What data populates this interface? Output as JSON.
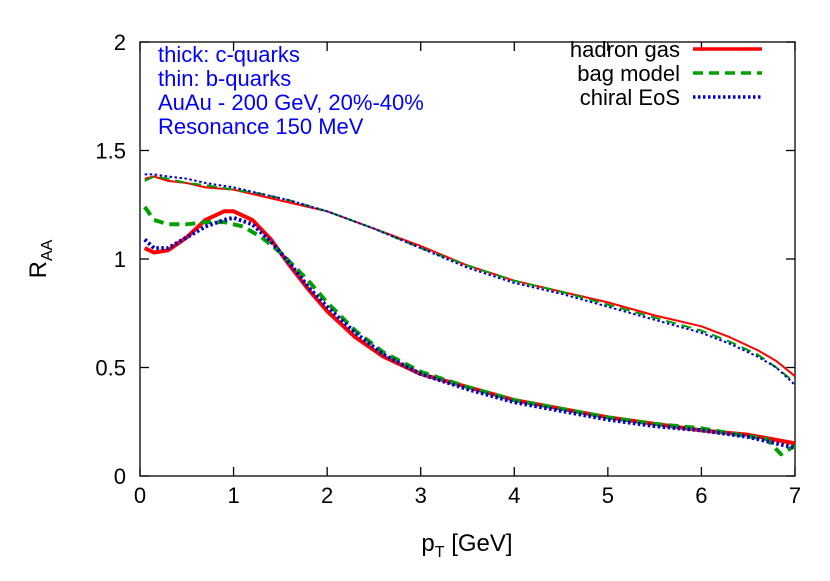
{
  "chart_data": {
    "type": "line",
    "xlabel": {
      "main": "p",
      "sub": "T",
      "rest": " [GeV]"
    },
    "ylabel": {
      "main": "R",
      "sub": "AA"
    },
    "xlim": [
      0,
      7
    ],
    "ylim": [
      0,
      2
    ],
    "xticks": [
      "0",
      "1",
      "2",
      "3",
      "4",
      "5",
      "6",
      "7"
    ],
    "yticks": [
      "0",
      "0.5",
      "1",
      "1.5",
      "2"
    ],
    "grid": false,
    "legend_position": "top-right",
    "annotations": [
      "thick: c-quarks",
      "thin: b-quarks",
      "AuAu - 200 GeV, 20%-40%",
      "Resonance 150 MeV"
    ],
    "annotation_color": "#0000ff",
    "series": [
      {
        "name": "hadron gas",
        "color": "#ff0000",
        "dash": "solid",
        "curves": [
          {
            "width": "thin",
            "x": [
              0.05,
              0.15,
              0.3,
              0.5,
              0.7,
              1.0,
              1.3,
              1.6,
              2.0,
              2.5,
              3.0,
              3.5,
              4.0,
              4.5,
              5.0,
              5.5,
              6.0,
              6.3,
              6.6,
              6.8,
              7.0
            ],
            "y": [
              1.37,
              1.38,
              1.36,
              1.35,
              1.33,
              1.32,
              1.29,
              1.26,
              1.22,
              1.14,
              1.06,
              0.97,
              0.9,
              0.85,
              0.8,
              0.74,
              0.69,
              0.64,
              0.58,
              0.53,
              0.46
            ]
          },
          {
            "width": "thick",
            "x": [
              0.05,
              0.15,
              0.3,
              0.5,
              0.7,
              0.9,
              1.0,
              1.2,
              1.4,
              1.6,
              1.8,
              2.0,
              2.3,
              2.6,
              3.0,
              3.5,
              4.0,
              4.5,
              5.0,
              5.5,
              6.0,
              6.5,
              7.0
            ],
            "y": [
              1.05,
              1.03,
              1.04,
              1.1,
              1.18,
              1.22,
              1.22,
              1.18,
              1.09,
              0.97,
              0.86,
              0.76,
              0.64,
              0.55,
              0.47,
              0.41,
              0.35,
              0.31,
              0.27,
              0.24,
              0.21,
              0.19,
              0.15
            ]
          }
        ]
      },
      {
        "name": "bag model",
        "color": "#00a000",
        "dash": "dashed",
        "curves": [
          {
            "width": "thin",
            "x": [
              0.05,
              0.15,
              0.3,
              0.5,
              0.7,
              1.0,
              1.3,
              1.6,
              2.0,
              2.5,
              3.0,
              3.5,
              4.0,
              4.5,
              5.0,
              5.5,
              6.0,
              6.3,
              6.6,
              6.8,
              7.0
            ],
            "y": [
              1.36,
              1.38,
              1.37,
              1.35,
              1.34,
              1.32,
              1.3,
              1.27,
              1.22,
              1.14,
              1.05,
              0.97,
              0.9,
              0.85,
              0.79,
              0.73,
              0.67,
              0.62,
              0.56,
              0.5,
              0.43
            ]
          },
          {
            "width": "thick",
            "x": [
              0.05,
              0.15,
              0.3,
              0.5,
              0.7,
              0.9,
              1.1,
              1.3,
              1.5,
              1.8,
              2.0,
              2.3,
              2.6,
              3.0,
              3.5,
              4.0,
              4.5,
              5.0,
              5.5,
              6.0,
              6.4,
              6.7,
              6.85,
              7.0
            ],
            "y": [
              1.24,
              1.18,
              1.16,
              1.16,
              1.17,
              1.17,
              1.15,
              1.1,
              1.03,
              0.9,
              0.8,
              0.67,
              0.57,
              0.48,
              0.41,
              0.35,
              0.31,
              0.27,
              0.24,
              0.22,
              0.19,
              0.17,
              0.1,
              0.14
            ]
          }
        ]
      },
      {
        "name": "chiral EoS",
        "color": "#0000cc",
        "dash": "dotted",
        "curves": [
          {
            "width": "thin",
            "x": [
              0.05,
              0.15,
              0.3,
              0.5,
              0.7,
              1.0,
              1.3,
              1.6,
              2.0,
              2.5,
              3.0,
              3.5,
              4.0,
              4.5,
              5.0,
              5.5,
              6.0,
              6.3,
              6.6,
              6.8,
              7.0
            ],
            "y": [
              1.39,
              1.39,
              1.38,
              1.37,
              1.35,
              1.33,
              1.3,
              1.27,
              1.22,
              1.14,
              1.05,
              0.96,
              0.89,
              0.84,
              0.78,
              0.72,
              0.66,
              0.61,
              0.55,
              0.5,
              0.42
            ]
          },
          {
            "width": "thick",
            "x": [
              0.05,
              0.15,
              0.3,
              0.5,
              0.7,
              0.9,
              1.0,
              1.2,
              1.4,
              1.6,
              1.8,
              2.0,
              2.3,
              2.6,
              3.0,
              3.5,
              4.0,
              4.5,
              5.0,
              5.5,
              6.0,
              6.5,
              7.0
            ],
            "y": [
              1.09,
              1.05,
              1.05,
              1.1,
              1.15,
              1.18,
              1.19,
              1.16,
              1.08,
              0.98,
              0.87,
              0.78,
              0.66,
              0.56,
              0.47,
              0.4,
              0.34,
              0.3,
              0.26,
              0.23,
              0.21,
              0.18,
              0.13
            ]
          }
        ]
      }
    ]
  }
}
